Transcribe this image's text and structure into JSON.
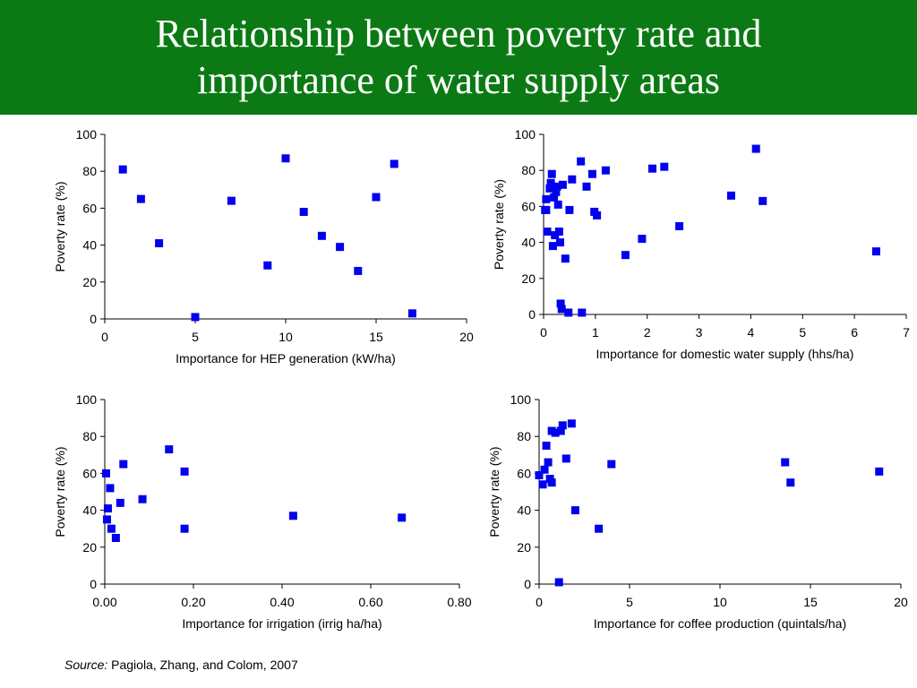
{
  "header": {
    "title_line1": "Relationship between poverty rate and",
    "title_line2": "importance of water supply areas"
  },
  "source": {
    "label": "Source:",
    "text": "Pagiola, Zhang, and Colom, 2007"
  },
  "colors": {
    "header_bg": "#0b7a14",
    "marker": "#0000ee"
  },
  "chart_data": [
    {
      "type": "scatter",
      "xlabel": "Importance for HEP generation (kW/ha)",
      "ylabel": "Poverty rate (%)",
      "xlim": [
        0,
        20
      ],
      "ylim": [
        0,
        100
      ],
      "xticks": [
        "0",
        "5",
        "10",
        "15",
        "20"
      ],
      "xtick_values": [
        0,
        5,
        10,
        15,
        20
      ],
      "yticks": [
        "0",
        "20",
        "40",
        "60",
        "80",
        "100"
      ],
      "ytick_values": [
        0,
        20,
        40,
        60,
        80,
        100
      ],
      "points": [
        [
          1,
          81
        ],
        [
          2,
          65
        ],
        [
          3,
          41
        ],
        [
          5,
          1
        ],
        [
          7,
          64
        ],
        [
          9,
          29
        ],
        [
          10,
          87
        ],
        [
          11,
          58
        ],
        [
          12,
          45
        ],
        [
          13,
          39
        ],
        [
          14,
          26
        ],
        [
          15,
          66
        ],
        [
          16,
          84
        ],
        [
          17,
          3
        ]
      ]
    },
    {
      "type": "scatter",
      "xlabel": "Importance for domestic water supply (hhs/ha)",
      "ylabel": "Poverty rate (%)",
      "xlim": [
        0,
        7
      ],
      "ylim": [
        0,
        100
      ],
      "xticks": [
        "0",
        "1",
        "2",
        "3",
        "4",
        "5",
        "6",
        "7"
      ],
      "xtick_values": [
        0,
        1,
        2,
        3,
        4,
        5,
        6,
        7
      ],
      "yticks": [
        "0",
        "20",
        "40",
        "60",
        "80",
        "100"
      ],
      "ytick_values": [
        0,
        20,
        40,
        60,
        80,
        100
      ],
      "points": [
        [
          0.03,
          58
        ],
        [
          0.05,
          64
        ],
        [
          0.05,
          58
        ],
        [
          0.07,
          46
        ],
        [
          0.12,
          70
        ],
        [
          0.14,
          73
        ],
        [
          0.16,
          78
        ],
        [
          0.18,
          38
        ],
        [
          0.2,
          65
        ],
        [
          0.22,
          44
        ],
        [
          0.24,
          68
        ],
        [
          0.26,
          71
        ],
        [
          0.28,
          61
        ],
        [
          0.3,
          46
        ],
        [
          0.32,
          40
        ],
        [
          0.33,
          6
        ],
        [
          0.35,
          3
        ],
        [
          0.37,
          72
        ],
        [
          0.42,
          31
        ],
        [
          0.48,
          1
        ],
        [
          0.5,
          58
        ],
        [
          0.55,
          75
        ],
        [
          0.72,
          85
        ],
        [
          0.74,
          1
        ],
        [
          0.83,
          71
        ],
        [
          0.94,
          78
        ],
        [
          0.98,
          57
        ],
        [
          1.03,
          55
        ],
        [
          1.2,
          80
        ],
        [
          1.58,
          33
        ],
        [
          1.9,
          42
        ],
        [
          2.1,
          81
        ],
        [
          2.33,
          82
        ],
        [
          2.62,
          49
        ],
        [
          3.62,
          66
        ],
        [
          4.1,
          92
        ],
        [
          4.23,
          63
        ],
        [
          6.42,
          35
        ]
      ]
    },
    {
      "type": "scatter",
      "xlabel": "Importance for irrigation (irrig ha/ha)",
      "ylabel": "Poverty rate (%)",
      "xlim": [
        0,
        0.8
      ],
      "ylim": [
        0,
        100
      ],
      "xticks": [
        "0.00",
        "0.20",
        "0.40",
        "0.60",
        "0.80"
      ],
      "xtick_values": [
        0,
        0.2,
        0.4,
        0.6,
        0.8
      ],
      "yticks": [
        "0",
        "20",
        "40",
        "60",
        "80",
        "100"
      ],
      "ytick_values": [
        0,
        20,
        40,
        60,
        80,
        100
      ],
      "points": [
        [
          0.003,
          60
        ],
        [
          0.005,
          35
        ],
        [
          0.007,
          41
        ],
        [
          0.012,
          52
        ],
        [
          0.015,
          30
        ],
        [
          0.025,
          25
        ],
        [
          0.035,
          44
        ],
        [
          0.042,
          65
        ],
        [
          0.085,
          46
        ],
        [
          0.145,
          73
        ],
        [
          0.18,
          61
        ],
        [
          0.18,
          30
        ],
        [
          0.425,
          37
        ],
        [
          0.67,
          36
        ]
      ]
    },
    {
      "type": "scatter",
      "xlabel": "Importance for coffee production (quintals/ha)",
      "ylabel": "Poverty rate (%)",
      "xlim": [
        0,
        20
      ],
      "ylim": [
        0,
        100
      ],
      "xticks": [
        "0",
        "5",
        "10",
        "15",
        "20"
      ],
      "xtick_values": [
        0,
        5,
        10,
        15,
        20
      ],
      "yticks": [
        "0",
        "20",
        "40",
        "60",
        "80",
        "100"
      ],
      "ytick_values": [
        0,
        20,
        40,
        60,
        80,
        100
      ],
      "points": [
        [
          0,
          59
        ],
        [
          0.2,
          54
        ],
        [
          0.3,
          62
        ],
        [
          0.4,
          75
        ],
        [
          0.5,
          66
        ],
        [
          0.6,
          57
        ],
        [
          0.7,
          55
        ],
        [
          0.7,
          83
        ],
        [
          0.9,
          82
        ],
        [
          1.1,
          1
        ],
        [
          1.2,
          83
        ],
        [
          1.3,
          86
        ],
        [
          1.5,
          68
        ],
        [
          1.8,
          87
        ],
        [
          2.0,
          40
        ],
        [
          3.3,
          30
        ],
        [
          4.0,
          65
        ],
        [
          13.6,
          66
        ],
        [
          13.9,
          55
        ],
        [
          18.8,
          61
        ]
      ]
    }
  ]
}
